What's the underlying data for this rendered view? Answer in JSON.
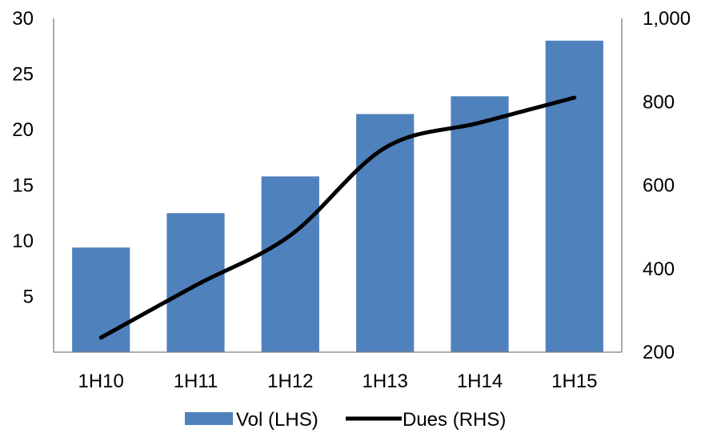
{
  "chart_data": {
    "type": "bar",
    "categories": [
      "1H10",
      "1H11",
      "1H12",
      "1H13",
      "1H14",
      "1H15"
    ],
    "series": [
      {
        "name": "Vol (LHS)",
        "type": "bar",
        "axis": "left",
        "values": [
          9.4,
          12.5,
          15.8,
          21.4,
          23.0,
          28.0
        ],
        "color": "#4F81BD"
      },
      {
        "name": "Dues (RHS)",
        "type": "line",
        "axis": "right",
        "smooth": true,
        "values": [
          235,
          360,
          480,
          690,
          750,
          810
        ],
        "color": "#000000"
      }
    ],
    "left_axis": {
      "ylim": [
        0,
        30
      ],
      "ticks": [
        5,
        10,
        15,
        20,
        25,
        30
      ],
      "tick_labels": [
        "5",
        "10",
        "15",
        "20",
        "25",
        "30"
      ]
    },
    "right_axis": {
      "ylim": [
        200,
        1000
      ],
      "ticks": [
        200,
        400,
        600,
        800,
        1000
      ],
      "tick_labels": [
        "200",
        "400",
        "600",
        "800",
        "1,000"
      ]
    },
    "grid": false,
    "legend": "bottom"
  }
}
